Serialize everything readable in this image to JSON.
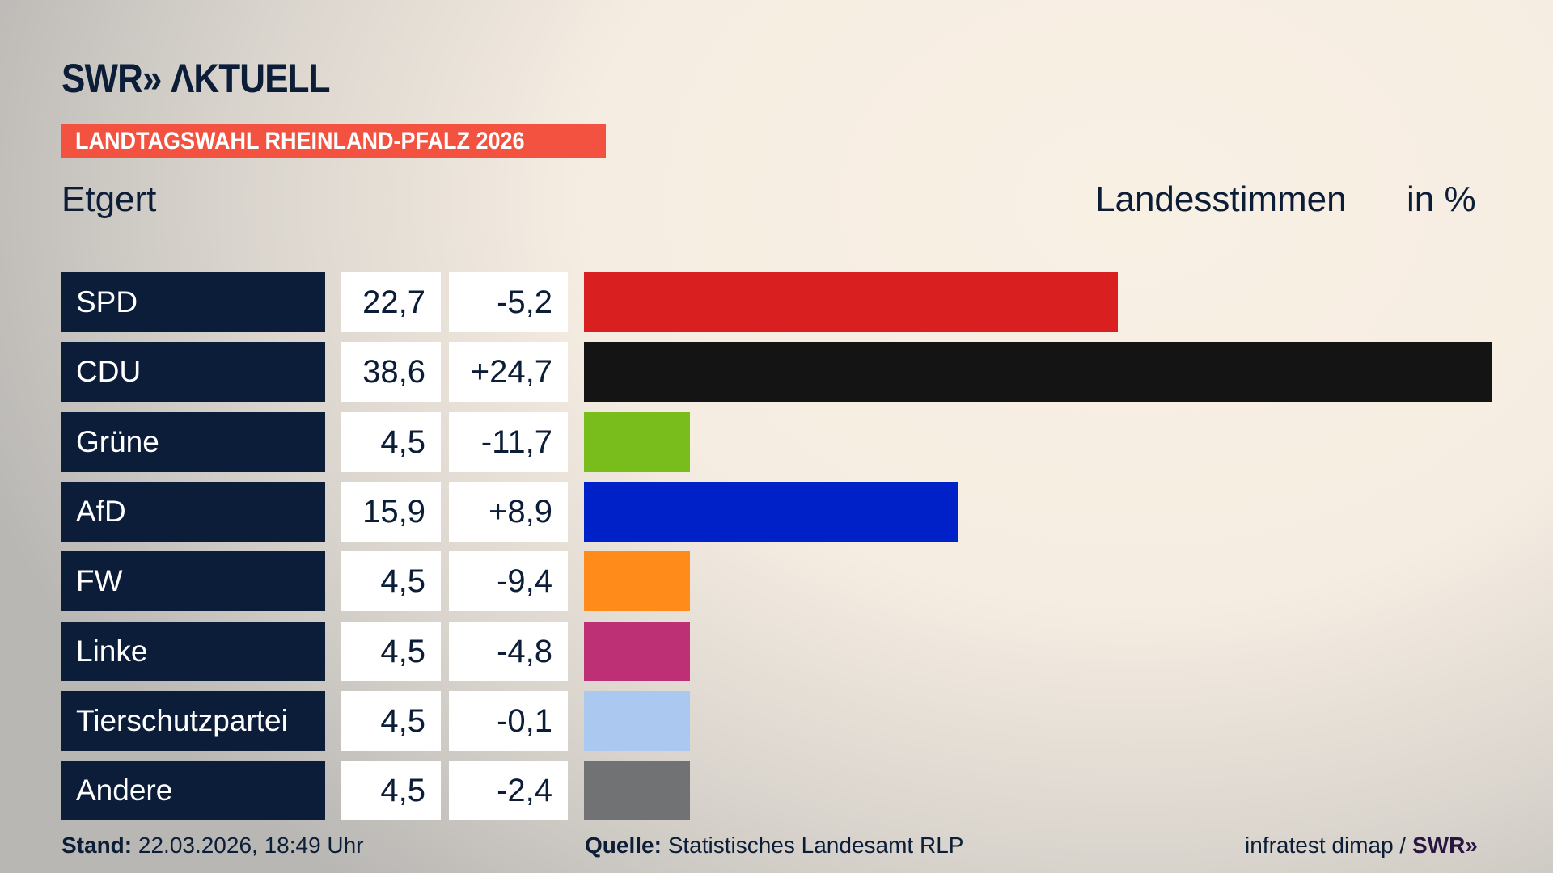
{
  "logo": "SWR» ΛKTUELL",
  "banner": "LANDTAGSWAHL RHEINLAND-PFALZ 2026",
  "place": "Etgert",
  "header": {
    "measure": "Landesstimmen",
    "unit": "in %"
  },
  "chart_data": {
    "type": "bar",
    "orientation": "horizontal",
    "categories": [
      "SPD",
      "CDU",
      "Grüne",
      "AfD",
      "FW",
      "Linke",
      "Tierschutzpartei",
      "Andere"
    ],
    "values": [
      22.7,
      38.6,
      4.5,
      15.9,
      4.5,
      4.5,
      4.5,
      4.5
    ],
    "value_labels": [
      "22,7",
      "38,6",
      "4,5",
      "15,9",
      "4,5",
      "4,5",
      "4,5",
      "4,5"
    ],
    "diff_labels": [
      "-5,2",
      "+24,7",
      "-11,7",
      "+8,9",
      "-9,4",
      "-4,8",
      "-0,1",
      "-2,4"
    ],
    "colors": [
      "#d91f20",
      "#141414",
      "#79bd1c",
      "#0021c8",
      "#ff8c1a",
      "#bd3075",
      "#abc8f0",
      "#717273"
    ],
    "xlim": [
      0,
      38.6
    ]
  },
  "footer": {
    "stand_label": "Stand:",
    "stand_value": " 22.03.2026, 18:49 Uhr",
    "source_label": "Quelle:",
    "source_value": " Statistisches Landesamt RLP",
    "credit": "infratest dimap / ",
    "credit_logo": "SWR»"
  }
}
